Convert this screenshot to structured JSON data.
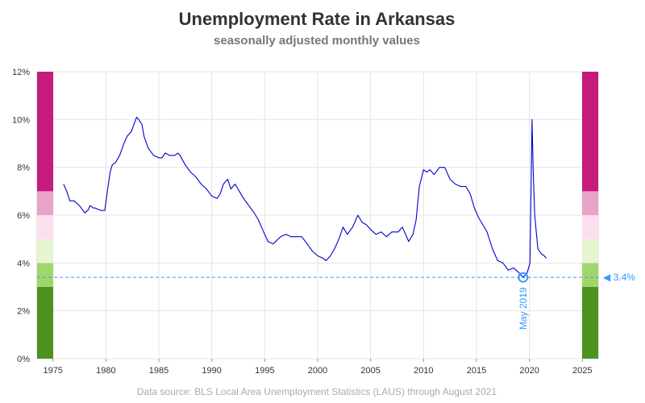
{
  "chart_data": {
    "type": "line",
    "title": "Unemployment Rate in Arkansas",
    "subtitle": "seasonally adjusted monthly values",
    "source": "Data source: BLS Local Area Unemployment Statistics (LAUS) through August 2021",
    "xlabel": "",
    "ylabel": "",
    "xlim": [
      1973.5,
      2026.5
    ],
    "ylim": [
      0,
      12
    ],
    "x_ticks": [
      1975,
      1980,
      1985,
      1990,
      1995,
      2000,
      2005,
      2010,
      2015,
      2020,
      2025
    ],
    "y_ticks": [
      0,
      2,
      4,
      6,
      8,
      10,
      12
    ],
    "y_tick_labels": [
      "0%",
      "2%",
      "4%",
      "6%",
      "8%",
      "10%",
      "12%"
    ],
    "grid": true,
    "line_color": "#0000cc",
    "series": [
      {
        "x": [
          1976.0,
          1976.3,
          1976.6,
          1977.0,
          1977.5,
          1978.0,
          1978.3,
          1978.5,
          1978.8,
          1979.0,
          1979.5,
          1979.9,
          1980.1,
          1980.4,
          1980.6,
          1980.9,
          1981.3,
          1981.7,
          1982.0,
          1982.4,
          1982.9,
          1983.1,
          1983.4,
          1983.6,
          1984.0,
          1984.5,
          1985.0,
          1985.3,
          1985.6,
          1986.0,
          1986.5,
          1986.8,
          1987.0,
          1987.5,
          1988.0,
          1988.5,
          1989.0,
          1989.5,
          1990.0,
          1990.5,
          1990.8,
          1991.1,
          1991.5,
          1991.8,
          1992.2,
          1992.6,
          1993.0,
          1993.5,
          1994.0,
          1994.4,
          1994.8,
          1995.3,
          1995.8,
          1996.5,
          1997.0,
          1997.5,
          1998.0,
          1998.5,
          1999.0,
          1999.5,
          2000.0,
          2000.5,
          2000.8,
          2001.2,
          2001.6,
          2002.0,
          2002.4,
          2002.8,
          2003.3,
          2003.8,
          2004.2,
          2004.6,
          2005.0,
          2005.5,
          2006.0,
          2006.5,
          2007.0,
          2007.6,
          2008.0,
          2008.3,
          2008.6,
          2009.0,
          2009.3,
          2009.6,
          2010.0,
          2010.3,
          2010.6,
          2011.0,
          2011.5,
          2012.0,
          2012.5,
          2013.0,
          2013.5,
          2014.0,
          2014.4,
          2014.8,
          2015.2,
          2015.6,
          2016.0,
          2016.5,
          2017.0,
          2017.5,
          2018.0,
          2018.5,
          2019.0,
          2019.4,
          2019.8,
          2020.05,
          2020.25,
          2020.35,
          2020.5,
          2020.8,
          2021.1,
          2021.4,
          2021.6
        ],
        "y": [
          7.3,
          7.0,
          6.6,
          6.6,
          6.4,
          6.1,
          6.2,
          6.4,
          6.3,
          6.3,
          6.2,
          6.2,
          6.9,
          7.8,
          8.1,
          8.2,
          8.5,
          9.0,
          9.3,
          9.5,
          10.1,
          10.0,
          9.8,
          9.3,
          8.8,
          8.5,
          8.4,
          8.4,
          8.6,
          8.5,
          8.5,
          8.6,
          8.5,
          8.1,
          7.8,
          7.6,
          7.3,
          7.1,
          6.8,
          6.7,
          6.9,
          7.3,
          7.5,
          7.1,
          7.3,
          7.0,
          6.7,
          6.4,
          6.1,
          5.8,
          5.4,
          4.9,
          4.8,
          5.1,
          5.2,
          5.1,
          5.1,
          5.1,
          4.8,
          4.5,
          4.3,
          4.2,
          4.1,
          4.3,
          4.6,
          5.0,
          5.5,
          5.2,
          5.5,
          6.0,
          5.7,
          5.6,
          5.4,
          5.2,
          5.3,
          5.1,
          5.3,
          5.3,
          5.5,
          5.2,
          4.9,
          5.2,
          5.8,
          7.2,
          7.9,
          7.8,
          7.9,
          7.7,
          8.0,
          8.0,
          7.5,
          7.3,
          7.2,
          7.2,
          6.9,
          6.3,
          5.9,
          5.6,
          5.3,
          4.6,
          4.1,
          4.0,
          3.7,
          3.8,
          3.6,
          3.4,
          3.6,
          4.0,
          10.0,
          8.0,
          6.0,
          4.6,
          4.4,
          4.3,
          4.2
        ]
      }
    ],
    "color_bands": [
      {
        "from": 0,
        "to": 3,
        "color": "#4d9221"
      },
      {
        "from": 3,
        "to": 4,
        "color": "#a1d76a"
      },
      {
        "from": 4,
        "to": 5,
        "color": "#e6f5d0"
      },
      {
        "from": 5,
        "to": 6,
        "color": "#fde0ef"
      },
      {
        "from": 6,
        "to": 7,
        "color": "#e9a3c9"
      },
      {
        "from": 7,
        "to": 12,
        "color": "#c51b7d"
      }
    ],
    "reference_line": {
      "value": 3.4,
      "label": "◀ 3.4%",
      "color": "#3399ff"
    },
    "marker": {
      "x": 2019.4,
      "y": 3.4,
      "label": "May 2019",
      "color": "#3399ff"
    }
  }
}
